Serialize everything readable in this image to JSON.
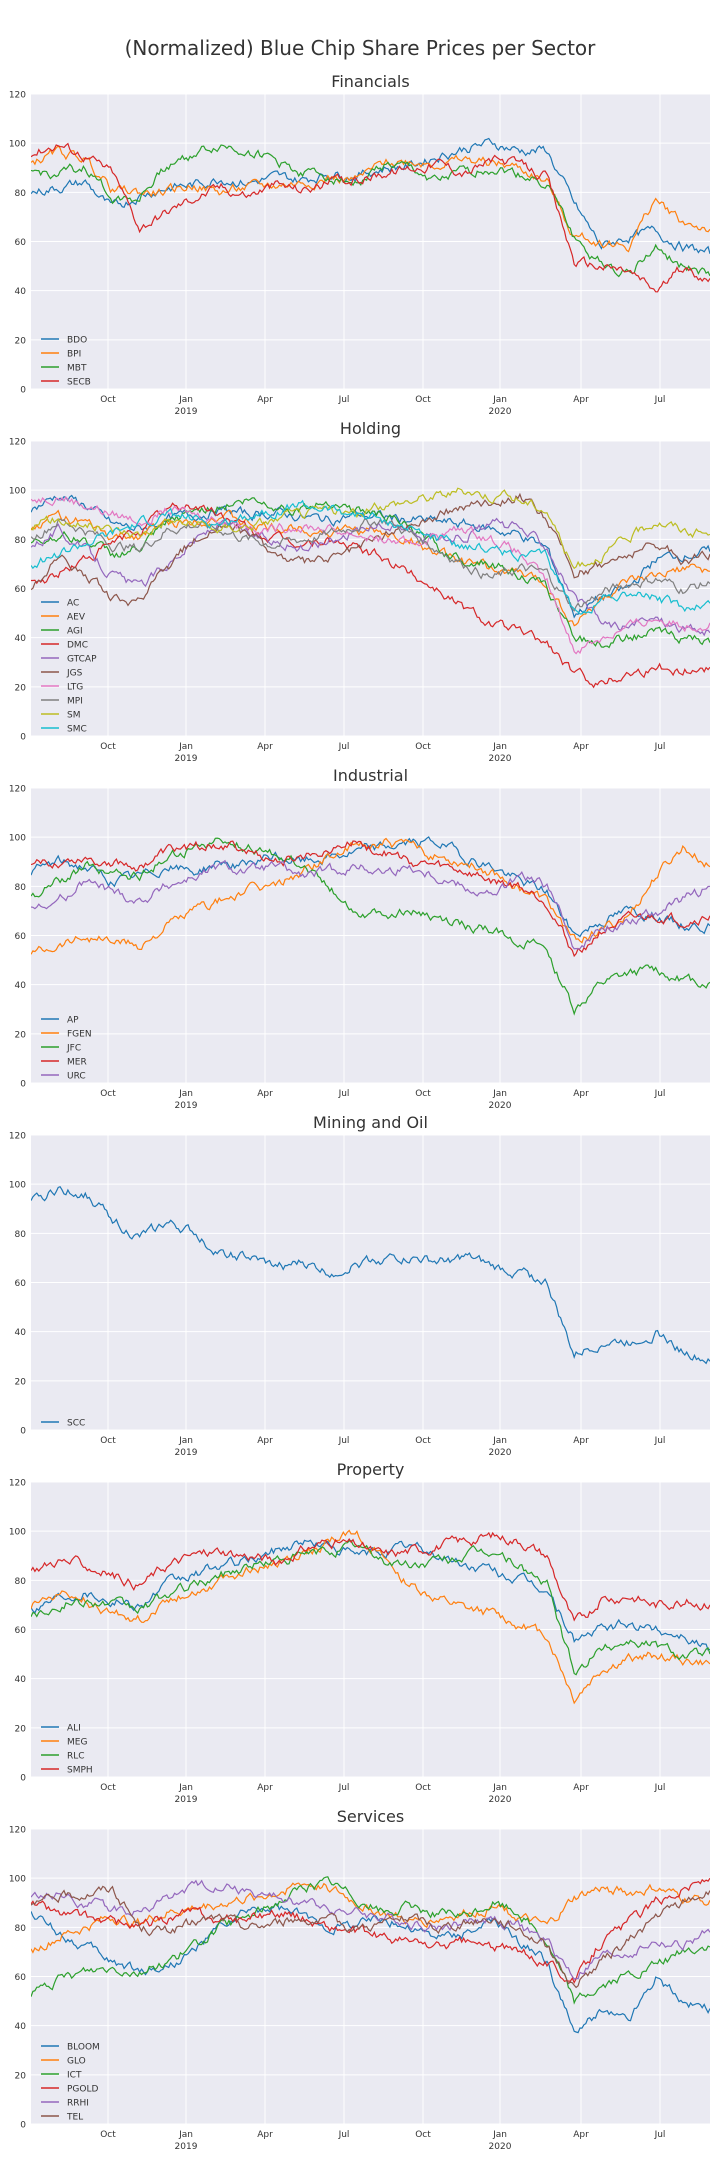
{
  "figure": {
    "title": "(Normalized) Blue Chip Share Prices per Sector"
  },
  "colors": {
    "palette": [
      "#1f77b4",
      "#ff7f0e",
      "#2ca02c",
      "#d62728",
      "#9467bd",
      "#8c564b",
      "#e377c2",
      "#7f7f7f",
      "#bcbd22",
      "#17becf"
    ],
    "axes_face": "#eaeaf2",
    "grid": "#ffffff"
  },
  "chart_data": [
    {
      "type": "line",
      "title": "Financials",
      "ylim": [
        0,
        120
      ],
      "yticks": [
        0,
        20,
        40,
        60,
        80,
        100,
        120
      ],
      "x_tick_labels": [
        [
          "Oct",
          ""
        ],
        [
          "Jan",
          "2019"
        ],
        [
          "Apr",
          ""
        ],
        [
          "Jul",
          ""
        ],
        [
          "Oct",
          ""
        ],
        [
          "Jan",
          "2020"
        ],
        [
          "Apr",
          ""
        ],
        [
          "Jul",
          ""
        ]
      ],
      "grid": true,
      "legend_position": "lower-left",
      "series": [
        {
          "name": "BDO",
          "values": [
            80,
            82,
            84,
            73,
            79,
            82,
            83,
            86,
            84,
            86,
            85,
            88,
            87,
            90,
            91,
            95,
            98,
            100,
            97,
            97,
            75,
            58,
            62,
            64,
            58,
            55
          ]
        },
        {
          "name": "BPI",
          "values": [
            92,
            96,
            94,
            81,
            80,
            80,
            83,
            80,
            82,
            83,
            84,
            86,
            85,
            92,
            93,
            92,
            93,
            92,
            90,
            84,
            62,
            60,
            58,
            77,
            68,
            65
          ]
        },
        {
          "name": "MBT",
          "values": [
            88,
            87,
            90,
            78,
            78,
            91,
            96,
            99,
            97,
            93,
            88,
            87,
            84,
            91,
            89,
            84,
            88,
            90,
            87,
            84,
            61,
            51,
            48,
            57,
            50,
            46
          ]
        },
        {
          "name": "SECB",
          "values": [
            96,
            100,
            95,
            88,
            66,
            72,
            78,
            82,
            79,
            83,
            81,
            84,
            85,
            88,
            90,
            92,
            88,
            93,
            91,
            86,
            52,
            50,
            48,
            40,
            49,
            45
          ]
        }
      ]
    },
    {
      "type": "line",
      "title": "Holding",
      "ylim": [
        0,
        120
      ],
      "yticks": [
        0,
        20,
        40,
        60,
        80,
        100,
        120
      ],
      "x_tick_labels": [
        [
          "Oct",
          ""
        ],
        [
          "Jan",
          "2019"
        ],
        [
          "Apr",
          ""
        ],
        [
          "Jul",
          ""
        ],
        [
          "Oct",
          ""
        ],
        [
          "Jan",
          "2020"
        ],
        [
          "Apr",
          ""
        ],
        [
          "Jul",
          ""
        ]
      ],
      "grid": true,
      "legend_position": "lower-left",
      "series": [
        {
          "name": "AC",
          "values": [
            92,
            98,
            94,
            86,
            84,
            88,
            90,
            92,
            90,
            91,
            89,
            88,
            90,
            89,
            88,
            87,
            86,
            84,
            82,
            76,
            50,
            56,
            60,
            72,
            74,
            75
          ]
        },
        {
          "name": "AEV",
          "values": [
            84,
            90,
            86,
            80,
            82,
            86,
            88,
            90,
            86,
            84,
            85,
            83,
            84,
            82,
            80,
            74,
            70,
            68,
            66,
            62,
            45,
            56,
            62,
            64,
            68,
            67
          ]
        },
        {
          "name": "AGI",
          "values": [
            78,
            82,
            80,
            74,
            76,
            86,
            92,
            94,
            96,
            94,
            92,
            96,
            92,
            90,
            84,
            76,
            72,
            70,
            66,
            60,
            40,
            38,
            40,
            42,
            40,
            38
          ]
        },
        {
          "name": "DMC",
          "values": [
            62,
            66,
            72,
            78,
            84,
            92,
            94,
            90,
            84,
            80,
            78,
            80,
            76,
            72,
            66,
            60,
            52,
            46,
            42,
            38,
            25,
            22,
            26,
            28,
            27,
            28
          ]
        },
        {
          "name": "GTCAP",
          "values": [
            78,
            84,
            76,
            66,
            60,
            70,
            80,
            86,
            82,
            80,
            76,
            80,
            84,
            86,
            84,
            80,
            82,
            86,
            84,
            78,
            56,
            46,
            44,
            48,
            44,
            42
          ]
        },
        {
          "name": "JGS",
          "values": [
            60,
            72,
            66,
            56,
            54,
            68,
            80,
            86,
            82,
            74,
            70,
            72,
            76,
            82,
            86,
            90,
            94,
            96,
            98,
            88,
            66,
            70,
            74,
            78,
            72,
            74
          ]
        },
        {
          "name": "LTG",
          "values": [
            96,
            98,
            94,
            90,
            88,
            92,
            90,
            88,
            86,
            84,
            86,
            84,
            82,
            80,
            78,
            82,
            84,
            80,
            74,
            62,
            35,
            40,
            44,
            48,
            45,
            46
          ]
        },
        {
          "name": "MPI",
          "values": [
            80,
            88,
            84,
            78,
            76,
            84,
            86,
            84,
            80,
            78,
            80,
            82,
            86,
            88,
            82,
            76,
            70,
            64,
            68,
            66,
            52,
            58,
            62,
            64,
            60,
            62
          ]
        },
        {
          "name": "SM",
          "values": [
            86,
            88,
            86,
            84,
            82,
            88,
            86,
            84,
            86,
            88,
            90,
            92,
            90,
            94,
            96,
            98,
            100,
            98,
            96,
            92,
            68,
            74,
            80,
            88,
            84,
            82
          ]
        },
        {
          "name": "SMC",
          "values": [
            70,
            74,
            78,
            82,
            86,
            90,
            88,
            86,
            90,
            92,
            94,
            92,
            90,
            88,
            84,
            80,
            78,
            76,
            74,
            72,
            50,
            56,
            58,
            56,
            52,
            54
          ]
        }
      ]
    },
    {
      "type": "line",
      "title": "Industrial",
      "ylim": [
        0,
        120
      ],
      "yticks": [
        0,
        20,
        40,
        60,
        80,
        100,
        120
      ],
      "x_tick_labels": [
        [
          "Oct",
          ""
        ],
        [
          "Jan",
          "2019"
        ],
        [
          "Apr",
          ""
        ],
        [
          "Jul",
          ""
        ],
        [
          "Oct",
          ""
        ],
        [
          "Jan",
          "2020"
        ],
        [
          "Apr",
          ""
        ],
        [
          "Jul",
          ""
        ]
      ],
      "grid": true,
      "legend_position": "lower-left",
      "series": [
        {
          "name": "AP",
          "values": [
            86,
            90,
            88,
            82,
            84,
            88,
            86,
            90,
            88,
            92,
            90,
            92,
            94,
            96,
            98,
            98,
            92,
            88,
            82,
            78,
            60,
            66,
            70,
            68,
            64,
            64
          ]
        },
        {
          "name": "FGEN",
          "values": [
            53,
            57,
            60,
            58,
            56,
            64,
            70,
            74,
            78,
            80,
            86,
            92,
            96,
            98,
            96,
            92,
            90,
            86,
            80,
            74,
            58,
            62,
            68,
            84,
            96,
            88
          ]
        },
        {
          "name": "JFC",
          "values": [
            76,
            82,
            88,
            86,
            84,
            92,
            96,
            98,
            96,
            92,
            90,
            80,
            70,
            68,
            70,
            66,
            64,
            62,
            58,
            54,
            30,
            40,
            44,
            46,
            42,
            41
          ]
        },
        {
          "name": "MER",
          "values": [
            88,
            90,
            92,
            90,
            88,
            94,
            96,
            98,
            94,
            90,
            92,
            96,
            98,
            94,
            90,
            88,
            86,
            82,
            80,
            74,
            52,
            62,
            66,
            68,
            66,
            68
          ]
        },
        {
          "name": "URC",
          "values": [
            70,
            74,
            82,
            78,
            74,
            80,
            84,
            88,
            86,
            88,
            84,
            86,
            88,
            86,
            88,
            84,
            80,
            76,
            84,
            80,
            56,
            62,
            66,
            70,
            74,
            80
          ]
        }
      ]
    },
    {
      "type": "line",
      "title": "Mining and Oil",
      "ylim": [
        0,
        120
      ],
      "yticks": [
        0,
        20,
        40,
        60,
        80,
        100,
        120
      ],
      "x_tick_labels": [
        [
          "Oct",
          ""
        ],
        [
          "Jan",
          "2019"
        ],
        [
          "Apr",
          ""
        ],
        [
          "Jul",
          ""
        ],
        [
          "Oct",
          ""
        ],
        [
          "Jan",
          "2020"
        ],
        [
          "Apr",
          ""
        ],
        [
          "Jul",
          ""
        ]
      ],
      "grid": true,
      "legend_position": "lower-left",
      "series": [
        {
          "name": "SCC",
          "values": [
            92,
            98,
            96,
            86,
            78,
            84,
            80,
            72,
            70,
            66,
            68,
            64,
            68,
            70,
            70,
            68,
            70,
            66,
            64,
            60,
            30,
            36,
            36,
            40,
            32,
            28
          ]
        }
      ]
    },
    {
      "type": "line",
      "title": "Property",
      "ylim": [
        0,
        120
      ],
      "yticks": [
        0,
        20,
        40,
        60,
        80,
        100,
        120
      ],
      "x_tick_labels": [
        [
          "Oct",
          ""
        ],
        [
          "Jan",
          "2019"
        ],
        [
          "Apr",
          ""
        ],
        [
          "Jul",
          ""
        ],
        [
          "Oct",
          ""
        ],
        [
          "Jan",
          "2020"
        ],
        [
          "Apr",
          ""
        ],
        [
          "Jul",
          ""
        ]
      ],
      "grid": true,
      "legend_position": "lower-left",
      "series": [
        {
          "name": "ALI",
          "values": [
            68,
            74,
            76,
            72,
            70,
            78,
            82,
            86,
            88,
            92,
            96,
            94,
            90,
            92,
            94,
            90,
            86,
            84,
            80,
            76,
            56,
            60,
            62,
            60,
            58,
            52
          ]
        },
        {
          "name": "MEG",
          "values": [
            70,
            74,
            72,
            66,
            64,
            72,
            76,
            80,
            84,
            86,
            90,
            96,
            100,
            88,
            78,
            72,
            68,
            66,
            62,
            58,
            32,
            44,
            48,
            50,
            48,
            46
          ]
        },
        {
          "name": "RLC",
          "values": [
            66,
            70,
            72,
            70,
            68,
            74,
            78,
            82,
            86,
            88,
            90,
            92,
            94,
            88,
            86,
            88,
            90,
            92,
            86,
            78,
            42,
            52,
            56,
            54,
            50,
            50
          ]
        },
        {
          "name": "SMPH",
          "values": [
            84,
            88,
            86,
            82,
            78,
            86,
            90,
            92,
            90,
            88,
            92,
            96,
            94,
            90,
            92,
            94,
            96,
            98,
            96,
            90,
            62,
            72,
            74,
            70,
            72,
            70
          ]
        }
      ]
    },
    {
      "type": "line",
      "title": "Services",
      "ylim": [
        0,
        120
      ],
      "yticks": [
        0,
        20,
        40,
        60,
        80,
        100,
        120
      ],
      "x_tick_labels": [
        [
          "Oct",
          ""
        ],
        [
          "Jan",
          "2019"
        ],
        [
          "Apr",
          ""
        ],
        [
          "Jul",
          ""
        ],
        [
          "Oct",
          ""
        ],
        [
          "Jan",
          "2020"
        ],
        [
          "Apr",
          ""
        ],
        [
          "Jul",
          ""
        ]
      ],
      "grid": true,
      "legend_position": "lower-left",
      "series": [
        {
          "name": "BLOOM",
          "values": [
            86,
            78,
            72,
            66,
            62,
            64,
            70,
            80,
            86,
            88,
            84,
            80,
            82,
            84,
            80,
            76,
            78,
            82,
            74,
            66,
            36,
            46,
            42,
            60,
            50,
            47
          ]
        },
        {
          "name": "GLO",
          "values": [
            70,
            76,
            80,
            84,
            82,
            86,
            88,
            90,
            92,
            94,
            98,
            96,
            90,
            86,
            82,
            84,
            86,
            88,
            84,
            80,
            92,
            96,
            94,
            96,
            92,
            91
          ]
        },
        {
          "name": "ICT",
          "values": [
            53,
            58,
            62,
            64,
            62,
            66,
            72,
            80,
            84,
            90,
            96,
            98,
            92,
            86,
            88,
            86,
            84,
            90,
            86,
            74,
            50,
            56,
            60,
            64,
            70,
            72
          ]
        },
        {
          "name": "PGOLD",
          "values": [
            90,
            86,
            84,
            82,
            80,
            84,
            86,
            82,
            84,
            86,
            84,
            80,
            78,
            76,
            74,
            72,
            74,
            72,
            70,
            66,
            58,
            74,
            82,
            90,
            96,
            100
          ]
        },
        {
          "name": "RRHI",
          "values": [
            92,
            94,
            90,
            88,
            86,
            92,
            96,
            98,
            94,
            92,
            90,
            88,
            86,
            84,
            82,
            80,
            82,
            84,
            80,
            74,
            60,
            68,
            70,
            74,
            72,
            78
          ]
        },
        {
          "name": "TEL",
          "values": [
            88,
            92,
            94,
            96,
            80,
            78,
            82,
            84,
            80,
            82,
            84,
            82,
            80,
            82,
            84,
            80,
            82,
            84,
            80,
            72,
            56,
            66,
            74,
            84,
            90,
            95
          ]
        }
      ]
    }
  ]
}
